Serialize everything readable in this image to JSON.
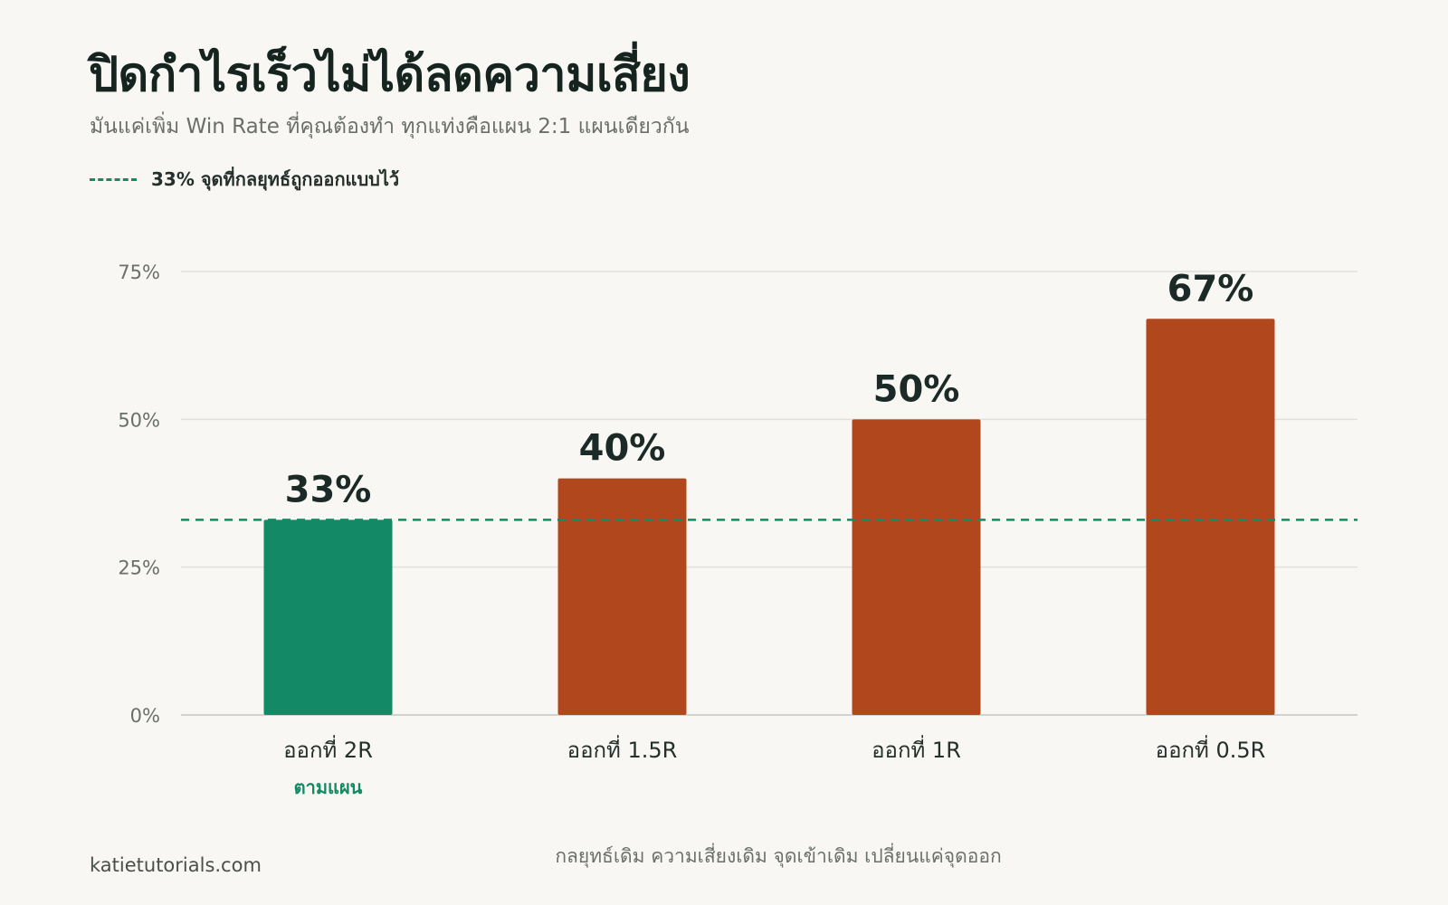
{
  "title": "ปิดกำไรเร็วไม่ได้ลดความเสี่ยง",
  "subtitle": "มันแค่เพิ่ม Win Rate ที่คุณต้องทำ ทุกแท่งคือแผน 2:1 แผนเดียวกัน",
  "legend": {
    "label": "33% จุดที่กลยุทธ์ถูกออกแบบไว้"
  },
  "footer": {
    "source": "katietutorials.com",
    "note": "กลยุทธ์เดิม ความเสี่ยงเดิม จุดเข้าเดิม เปลี่ยนแค่จุดออก"
  },
  "colors": {
    "highlight": "#138a65",
    "bar": "#b1481d",
    "reference_line": "#158a63",
    "grid": "#e2e0dc",
    "axis": "#d4d2ce",
    "text": "#1b2a26",
    "muted": "#6a6f6c"
  },
  "chart_data": {
    "type": "bar",
    "categories": [
      "ออกที่ 2R",
      "ออกที่ 1.5R",
      "ออกที่ 1R",
      "ออกที่ 0.5R"
    ],
    "values": [
      33,
      40,
      50,
      67
    ],
    "data_labels": [
      "33%",
      "40%",
      "50%",
      "67%"
    ],
    "highlight_index": 0,
    "highlight_sublabel": "ตามแผน",
    "reference_line": {
      "value": 33,
      "label": "33% จุดที่กลยุทธ์ถูกออกแบบไว้",
      "style": "dashed"
    },
    "yticks": [
      0,
      25,
      50,
      75
    ],
    "ytick_labels": [
      "0%",
      "25%",
      "50%",
      "75%"
    ],
    "ylim": [
      0,
      75
    ],
    "grid": true,
    "legend_position": "top-left",
    "title": "ปิดกำไรเร็วไม่ได้ลดความเสี่ยง",
    "xlabel": "",
    "ylabel": ""
  }
}
